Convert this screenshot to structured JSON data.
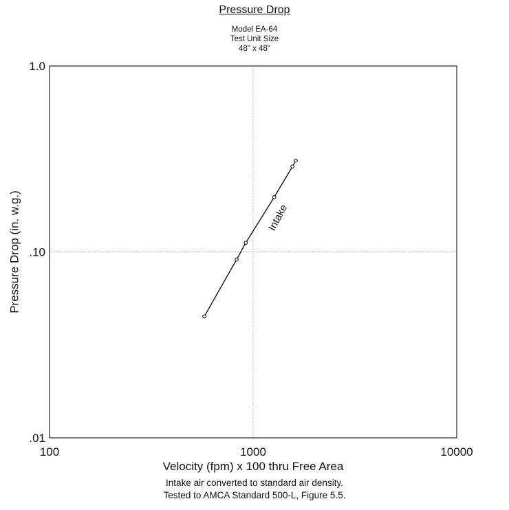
{
  "chart_data": {
    "type": "line",
    "title": "Pressure Drop",
    "subtitle": [
      "Model EA-64",
      "Test Unit Size",
      "48\" x 48\""
    ],
    "xlabel": "Velocity (fpm) x 100 thru Free Area",
    "ylabel": "Pressure Drop (in. w.g.)",
    "x_scale": "log",
    "y_scale": "log",
    "xlim": [
      100,
      10000
    ],
    "ylim": [
      0.01,
      1.0
    ],
    "x_ticks": [
      {
        "value": 100,
        "label": "100"
      },
      {
        "value": 1000,
        "label": "1000"
      },
      {
        "value": 10000,
        "label": "10000"
      }
    ],
    "y_ticks": [
      {
        "value": 0.01,
        "label": ".01"
      },
      {
        "value": 0.1,
        "label": ".10"
      },
      {
        "value": 1.0,
        "label": "1.0"
      }
    ],
    "grid": true,
    "series": [
      {
        "name": "Intake",
        "x": [
          576,
          830,
          920,
          1270,
          1560,
          1620
        ],
        "y": [
          0.045,
          0.091,
          0.112,
          0.197,
          0.288,
          0.31
        ]
      }
    ],
    "annotations": [
      {
        "text": "Intake",
        "x": 1100,
        "y": 0.15,
        "rotation_deg": -62
      }
    ],
    "notes": [
      "Intake air converted to standard air density.",
      "Tested to AMCA Standard 500-L, Figure 5.5."
    ]
  }
}
